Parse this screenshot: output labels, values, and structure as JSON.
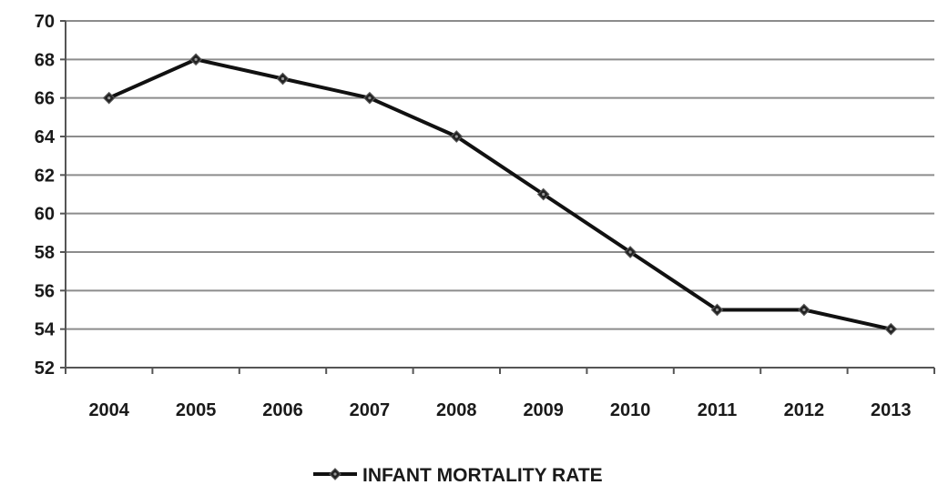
{
  "chart_data": {
    "type": "line",
    "title": "",
    "xlabel": "",
    "ylabel": "",
    "categories": [
      "2004",
      "2005",
      "2006",
      "2007",
      "2008",
      "2009",
      "2010",
      "2011",
      "2012",
      "2013"
    ],
    "series": [
      {
        "name": "INFANT MORTALITY RATE",
        "values": [
          66,
          68,
          67,
          66,
          64,
          61,
          58,
          55,
          55,
          54
        ]
      }
    ],
    "ylim": [
      52,
      70
    ],
    "yticks": [
      "52",
      "54",
      "56",
      "58",
      "60",
      "62",
      "64",
      "66",
      "68",
      "70"
    ],
    "grid": true,
    "legend": "bottom-center",
    "colors": {
      "line": "#111111",
      "grid": "#8c8c8c",
      "axis": "#555555"
    }
  }
}
